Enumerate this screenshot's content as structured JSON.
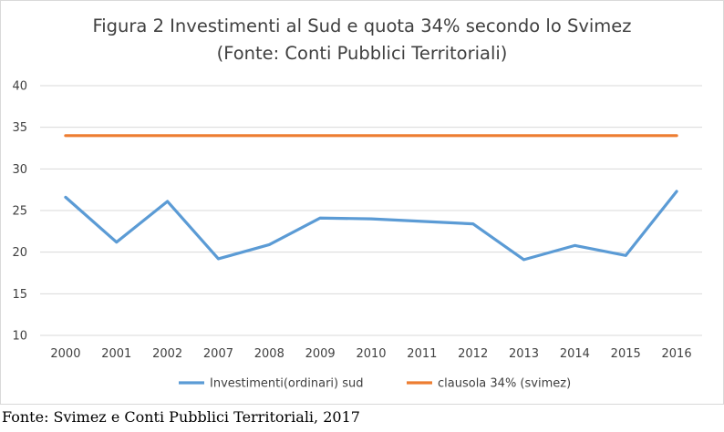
{
  "chart_data": {
    "type": "line",
    "title": "Figura 2 Investimenti al Sud e quota 34% secondo lo Svimez",
    "subtitle": "(Fonte: Conti Pubblici Territoriali)",
    "categories": [
      "2000",
      "2001",
      "2002",
      "2007",
      "2008",
      "2009",
      "2010",
      "2011",
      "2012",
      "2013",
      "2014",
      "2015",
      "2016"
    ],
    "series": [
      {
        "name": "Investimenti(ordinari) sud",
        "color": "#5b9bd5",
        "values": [
          26.6,
          21.2,
          26.1,
          19.2,
          20.9,
          24.1,
          24.0,
          23.7,
          23.4,
          19.1,
          20.8,
          19.6,
          27.3
        ]
      },
      {
        "name": "clausola 34% (svimez)",
        "color": "#ed7d31",
        "values": [
          34,
          34,
          34,
          34,
          34,
          34,
          34,
          34,
          34,
          34,
          34,
          34,
          34
        ]
      }
    ],
    "ylim": [
      10,
      40
    ],
    "yticks": [
      "10",
      "15",
      "20",
      "25",
      "30",
      "35",
      "40"
    ],
    "grid": true,
    "legend": "bottom",
    "xlabel": "",
    "ylabel": ""
  },
  "source_note": "Fonte: Svimez e  Conti Pubblici Territoriali, 2017"
}
